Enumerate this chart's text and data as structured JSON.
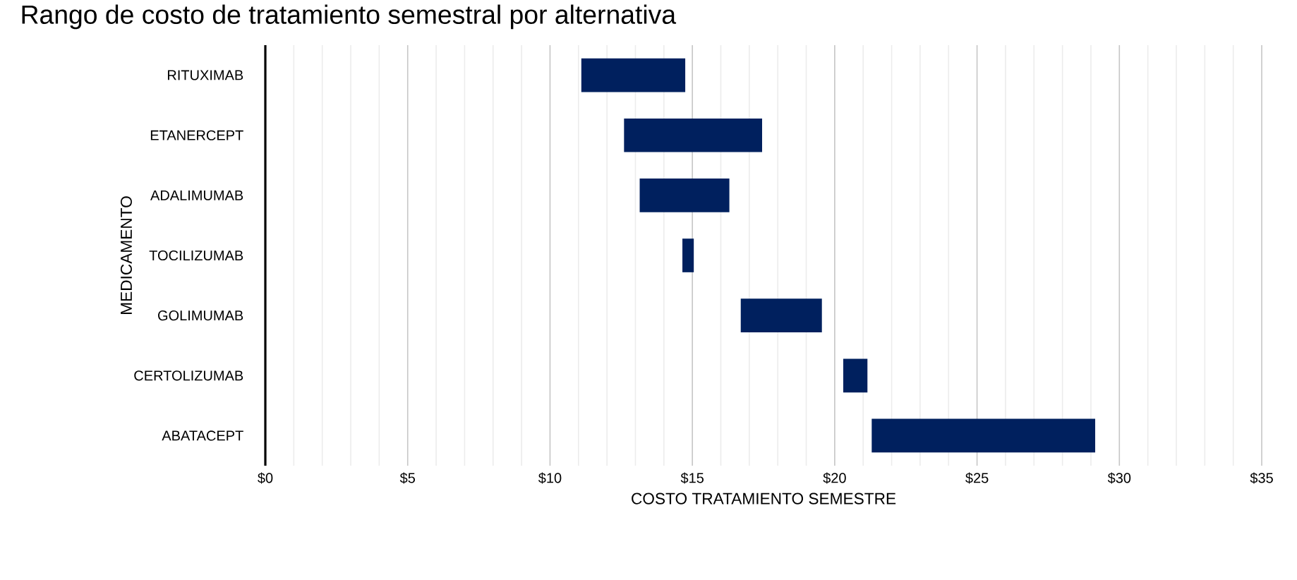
{
  "chart_data": {
    "type": "bar",
    "orientation": "horizontal",
    "title": "Rango de costo de tratamiento semestral por alternativa",
    "xlabel": "COSTO TRATAMIENTO SEMESTRE",
    "ylabel": "MEDICAMENTO",
    "categories": [
      "RITUXIMAB",
      "ETANERCEPT",
      "ADALIMUMAB",
      "TOCILIZUMAB",
      "GOLIMUMAB",
      "CERTOLIZUMAB",
      "ABATACEPT"
    ],
    "base": [
      11.1,
      12.6,
      13.15,
      14.65,
      16.7,
      20.3,
      21.3
    ],
    "values": [
      3.65,
      4.85,
      3.15,
      0.4,
      2.85,
      0.85,
      7.85
    ],
    "color": "#00205e",
    "xlim": [
      0,
      35
    ],
    "xticks": [
      {
        "value": 0,
        "label": "$0"
      },
      {
        "value": 5,
        "label": "$5"
      },
      {
        "value": 10,
        "label": "$10"
      },
      {
        "value": 15,
        "label": "$15"
      },
      {
        "value": 20,
        "label": "$20"
      },
      {
        "value": 25,
        "label": "$25"
      },
      {
        "value": 30,
        "label": "$30"
      },
      {
        "value": 35,
        "label": "$35"
      }
    ],
    "grid": "x"
  }
}
